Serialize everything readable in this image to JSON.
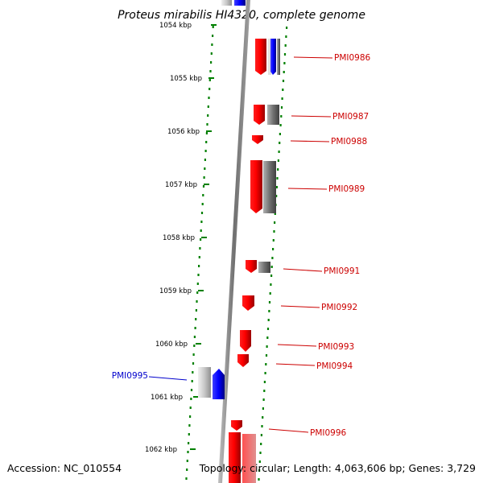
{
  "title": "Proteus mirabilis HI4320, complete genome",
  "accession": "Accession: NC_010554",
  "topology": "Topology: circular; Length: 4,063,606 bp; Genes: 3,729",
  "colors": {
    "forward": "#ff0000",
    "reverse": "#0000ff",
    "gray": "#707070",
    "tick": "#008000",
    "backbone": "#808080",
    "forward_label": "#cc0000",
    "reverse_label": "#0000cc"
  },
  "ruler": {
    "ticks": [
      "1054 kbp",
      "1055 kbp",
      "1056 kbp",
      "1057 kbp",
      "1058 kbp",
      "1059 kbp",
      "1060 kbp",
      "1061 kbp",
      "1062 kbp"
    ]
  },
  "genes": [
    {
      "name": "PMI0986",
      "strand": "forward"
    },
    {
      "name": "PMI0987",
      "strand": "forward"
    },
    {
      "name": "PMI0988",
      "strand": "forward"
    },
    {
      "name": "PMI0989",
      "strand": "forward"
    },
    {
      "name": "PMI0991",
      "strand": "forward"
    },
    {
      "name": "PMI0992",
      "strand": "forward"
    },
    {
      "name": "PMI0993",
      "strand": "forward"
    },
    {
      "name": "PMI0994",
      "strand": "forward"
    },
    {
      "name": "PMI0995",
      "strand": "reverse"
    },
    {
      "name": "PMI0996",
      "strand": "forward"
    }
  ]
}
